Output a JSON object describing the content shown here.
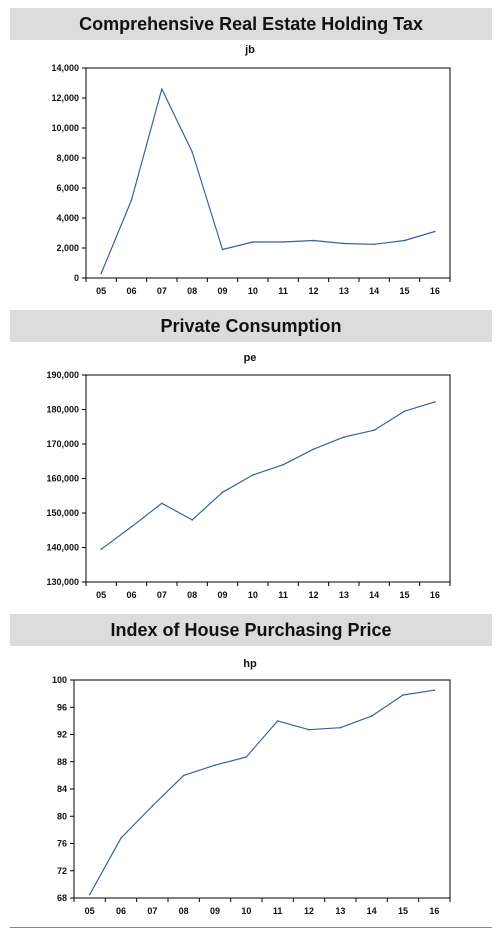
{
  "chart_data": [
    {
      "type": "line",
      "title": "Comprehensive Real Estate Holding Tax",
      "subtitle": "jb",
      "categories": [
        "05",
        "06",
        "07",
        "08",
        "09",
        "10",
        "11",
        "12",
        "13",
        "14",
        "15",
        "16"
      ],
      "values": [
        300,
        5200,
        12600,
        8400,
        1900,
        2400,
        2400,
        2500,
        2300,
        2250,
        2500,
        3100
      ],
      "yticks": [
        "0",
        "2,000",
        "4,000",
        "6,000",
        "8,000",
        "10,000",
        "12,000",
        "14,000"
      ],
      "ylim": [
        0,
        14000
      ],
      "line_color": "#3d5f9b",
      "grid": false
    },
    {
      "type": "line",
      "title": "Private Consumption",
      "subtitle": "pe",
      "categories": [
        "05",
        "06",
        "07",
        "08",
        "09",
        "10",
        "11",
        "12",
        "13",
        "14",
        "15",
        "16"
      ],
      "values": [
        139500,
        146000,
        152800,
        148000,
        156000,
        161000,
        164000,
        168500,
        172000,
        174000,
        179500,
        182200
      ],
      "yticks": [
        "130,000",
        "140,000",
        "150,000",
        "160,000",
        "170,000",
        "180,000",
        "190,000"
      ],
      "ylim": [
        130000,
        190000
      ],
      "line_color": "#3d5f9b",
      "grid": false
    },
    {
      "type": "line",
      "title": "Index of House Purchasing Price",
      "subtitle": "hp",
      "categories": [
        "05",
        "06",
        "07",
        "08",
        "09",
        "10",
        "11",
        "12",
        "13",
        "14",
        "15",
        "16"
      ],
      "values": [
        68.5,
        76.8,
        81.5,
        86.0,
        87.5,
        88.7,
        94.0,
        92.7,
        93.0,
        94.7,
        97.8,
        98.5
      ],
      "yticks": [
        "68",
        "72",
        "76",
        "80",
        "84",
        "88",
        "92",
        "96",
        "100"
      ],
      "ylim": [
        68,
        100
      ],
      "line_color": "#3d5f9b",
      "grid": false
    }
  ]
}
